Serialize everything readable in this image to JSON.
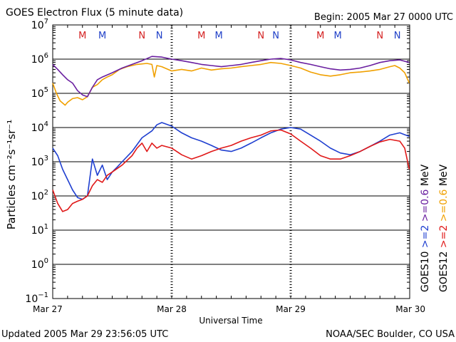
{
  "chart_data": {
    "type": "line",
    "title": "GOES Electron Flux (5 minute data)",
    "begin": "Begin: 2005 Mar 27 0000 UTC",
    "xlabel": "Universal Time",
    "ylabel": "Particles cm⁻²s⁻¹sr⁻¹",
    "x_ticks": [
      "Mar 27",
      "Mar 28",
      "Mar 29",
      "Mar 30"
    ],
    "xlim": [
      "2005-03-27 00:00",
      "2005-03-30 00:00"
    ],
    "y_scale": "log",
    "ylim": [
      0.1,
      10000000
    ],
    "y_ticks": [
      {
        "base": "10",
        "exp": "7"
      },
      {
        "base": "10",
        "exp": "6"
      },
      {
        "base": "10",
        "exp": "5"
      },
      {
        "base": "10",
        "exp": "4"
      },
      {
        "base": "10",
        "exp": "3"
      },
      {
        "base": "10",
        "exp": "2"
      },
      {
        "base": "10",
        "exp": "1"
      },
      {
        "base": "10",
        "exp": "0"
      },
      {
        "base": "10",
        "exp": "−1"
      }
    ],
    "threshold_level": 1000,
    "markers": [
      {
        "label": "M",
        "time": "2005-03-27 06:00",
        "color": "#d42020"
      },
      {
        "label": "M",
        "time": "2005-03-27 10:00",
        "color": "#2040c8"
      },
      {
        "label": "N",
        "time": "2005-03-27 18:00",
        "color": "#d42020"
      },
      {
        "label": "N",
        "time": "2005-03-27 21:30",
        "color": "#2040c8"
      },
      {
        "label": "M",
        "time": "2005-03-28 06:00",
        "color": "#d42020"
      },
      {
        "label": "M",
        "time": "2005-03-28 09:30",
        "color": "#2040c8"
      },
      {
        "label": "N",
        "time": "2005-03-28 18:00",
        "color": "#d42020"
      },
      {
        "label": "N",
        "time": "2005-03-28 21:00",
        "color": "#2040c8"
      },
      {
        "label": "M",
        "time": "2005-03-29 06:00",
        "color": "#d42020"
      },
      {
        "label": "M",
        "time": "2005-03-29 09:30",
        "color": "#2040c8"
      },
      {
        "label": "N",
        "time": "2005-03-29 18:00",
        "color": "#d42020"
      },
      {
        "label": "N",
        "time": "2005-03-29 21:30",
        "color": "#2040c8"
      }
    ],
    "series": [
      {
        "name": "GOES12 >=0.6 MeV",
        "color": "#f0a000",
        "x": [
          "2005-03-27 00:00",
          "2005-03-27 00:45",
          "2005-03-27 01:30",
          "2005-03-27 02:30",
          "2005-03-27 03:00",
          "2005-03-27 04:00",
          "2005-03-27 05:00",
          "2005-03-27 06:00",
          "2005-03-27 07:00",
          "2005-03-27 08:00",
          "2005-03-27 09:00",
          "2005-03-27 10:00",
          "2005-03-27 11:00",
          "2005-03-27 12:00",
          "2005-03-27 13:30",
          "2005-03-27 15:00",
          "2005-03-27 17:00",
          "2005-03-27 19:00",
          "2005-03-27 20:00",
          "2005-03-27 20:30",
          "2005-03-27 21:00",
          "2005-03-27 22:00",
          "2005-03-28 00:00",
          "2005-03-28 02:00",
          "2005-03-28 04:00",
          "2005-03-28 06:00",
          "2005-03-28 08:00",
          "2005-03-28 10:00",
          "2005-03-28 12:00",
          "2005-03-28 14:00",
          "2005-03-28 16:00",
          "2005-03-28 18:00",
          "2005-03-28 20:00",
          "2005-03-28 22:00",
          "2005-03-29 00:00",
          "2005-03-29 02:00",
          "2005-03-29 04:00",
          "2005-03-29 06:00",
          "2005-03-29 08:00",
          "2005-03-29 10:00",
          "2005-03-29 12:00",
          "2005-03-29 14:00",
          "2005-03-29 16:00",
          "2005-03-29 18:00",
          "2005-03-29 20:00",
          "2005-03-29 21:00",
          "2005-03-29 22:00",
          "2005-03-29 23:00",
          "2005-03-29 23:55"
        ],
        "values": [
          200000,
          100000,
          60000,
          45000,
          55000,
          70000,
          75000,
          65000,
          80000,
          150000,
          180000,
          250000,
          300000,
          350000,
          500000,
          600000,
          700000,
          750000,
          700000,
          300000,
          650000,
          600000,
          450000,
          500000,
          450000,
          550000,
          480000,
          520000,
          550000,
          600000,
          650000,
          700000,
          800000,
          750000,
          650000,
          550000,
          420000,
          350000,
          320000,
          350000,
          400000,
          420000,
          450000,
          500000,
          600000,
          650000,
          550000,
          400000,
          200000
        ]
      },
      {
        "name": "GOES10 >=0.6 MeV",
        "color": "#6a1fa0",
        "x": [
          "2005-03-27 00:00",
          "2005-03-27 01:00",
          "2005-03-27 02:00",
          "2005-03-27 03:00",
          "2005-03-27 04:00",
          "2005-03-27 05:00",
          "2005-03-27 06:00",
          "2005-03-27 07:00",
          "2005-03-27 08:00",
          "2005-03-27 09:00",
          "2005-03-27 10:00",
          "2005-03-27 12:00",
          "2005-03-27 14:00",
          "2005-03-27 16:00",
          "2005-03-27 18:00",
          "2005-03-27 20:00",
          "2005-03-27 22:00",
          "2005-03-28 00:00",
          "2005-03-28 02:00",
          "2005-03-28 04:00",
          "2005-03-28 06:00",
          "2005-03-28 08:00",
          "2005-03-28 10:00",
          "2005-03-28 12:00",
          "2005-03-28 14:00",
          "2005-03-28 16:00",
          "2005-03-28 18:00",
          "2005-03-28 20:00",
          "2005-03-28 22:00",
          "2005-03-29 00:00",
          "2005-03-29 02:00",
          "2005-03-29 04:00",
          "2005-03-29 06:00",
          "2005-03-29 08:00",
          "2005-03-29 10:00",
          "2005-03-29 12:00",
          "2005-03-29 14:00",
          "2005-03-29 16:00",
          "2005-03-29 18:00",
          "2005-03-29 20:00",
          "2005-03-29 22:00",
          "2005-03-29 23:55"
        ],
        "values": [
          700000,
          500000,
          350000,
          250000,
          200000,
          120000,
          90000,
          80000,
          150000,
          250000,
          300000,
          400000,
          550000,
          700000,
          900000,
          1200000,
          1150000,
          1000000,
          900000,
          800000,
          700000,
          650000,
          600000,
          650000,
          700000,
          800000,
          900000,
          1000000,
          1050000,
          950000,
          800000,
          700000,
          600000,
          520000,
          480000,
          500000,
          550000,
          650000,
          800000,
          900000,
          950000,
          800000
        ]
      },
      {
        "name": "GOES10 >=2 MeV",
        "color": "#1f3fd0",
        "x": [
          "2005-03-27 00:00",
          "2005-03-27 01:00",
          "2005-03-27 02:00",
          "2005-03-27 03:00",
          "2005-03-27 04:00",
          "2005-03-27 05:00",
          "2005-03-27 06:00",
          "2005-03-27 07:00",
          "2005-03-27 08:00",
          "2005-03-27 09:00",
          "2005-03-27 10:00",
          "2005-03-27 11:00",
          "2005-03-27 12:00",
          "2005-03-27 13:00",
          "2005-03-27 14:00",
          "2005-03-27 16:00",
          "2005-03-27 18:00",
          "2005-03-27 20:00",
          "2005-03-27 21:00",
          "2005-03-27 22:00",
          "2005-03-28 00:00",
          "2005-03-28 02:00",
          "2005-03-28 04:00",
          "2005-03-28 06:00",
          "2005-03-28 08:00",
          "2005-03-28 10:00",
          "2005-03-28 12:00",
          "2005-03-28 14:00",
          "2005-03-28 16:00",
          "2005-03-28 18:00",
          "2005-03-28 20:00",
          "2005-03-28 22:00",
          "2005-03-29 00:00",
          "2005-03-29 02:00",
          "2005-03-29 04:00",
          "2005-03-29 06:00",
          "2005-03-29 08:00",
          "2005-03-29 10:00",
          "2005-03-29 12:00",
          "2005-03-29 14:00",
          "2005-03-29 16:00",
          "2005-03-29 18:00",
          "2005-03-29 20:00",
          "2005-03-29 22:00",
          "2005-03-29 23:55"
        ],
        "values": [
          2500,
          1500,
          600,
          300,
          150,
          90,
          80,
          100,
          1200,
          400,
          800,
          300,
          500,
          700,
          1000,
          2000,
          5000,
          8000,
          12000,
          14000,
          11000,
          7000,
          5000,
          4000,
          3000,
          2200,
          2000,
          2500,
          3500,
          5000,
          7000,
          9000,
          10000,
          9000,
          6000,
          4000,
          2500,
          1800,
          1600,
          2000,
          2800,
          4000,
          6000,
          7000,
          5500
        ]
      },
      {
        "name": "GOES12 >=2 MeV",
        "color": "#e01818",
        "x": [
          "2005-03-27 00:00",
          "2005-03-27 01:00",
          "2005-03-27 02:00",
          "2005-03-27 03:00",
          "2005-03-27 04:00",
          "2005-03-27 05:00",
          "2005-03-27 06:00",
          "2005-03-27 07:00",
          "2005-03-27 08:00",
          "2005-03-27 09:00",
          "2005-03-27 10:00",
          "2005-03-27 11:00",
          "2005-03-27 12:00",
          "2005-03-27 14:00",
          "2005-03-27 16:00",
          "2005-03-27 17:00",
          "2005-03-27 18:00",
          "2005-03-27 19:00",
          "2005-03-27 20:00",
          "2005-03-27 21:00",
          "2005-03-27 22:00",
          "2005-03-28 00:00",
          "2005-03-28 02:00",
          "2005-03-28 04:00",
          "2005-03-28 06:00",
          "2005-03-28 08:00",
          "2005-03-28 10:00",
          "2005-03-28 12:00",
          "2005-03-28 14:00",
          "2005-03-28 16:00",
          "2005-03-28 18:00",
          "2005-03-28 20:00",
          "2005-03-28 22:00",
          "2005-03-29 00:00",
          "2005-03-29 02:00",
          "2005-03-29 04:00",
          "2005-03-29 06:00",
          "2005-03-29 08:00",
          "2005-03-29 10:00",
          "2005-03-29 12:00",
          "2005-03-29 14:00",
          "2005-03-29 16:00",
          "2005-03-29 18:00",
          "2005-03-29 20:00",
          "2005-03-29 22:00",
          "2005-03-29 23:00",
          "2005-03-29 23:55"
        ],
        "values": [
          150,
          60,
          35,
          40,
          60,
          70,
          80,
          100,
          200,
          300,
          250,
          400,
          500,
          800,
          1500,
          2500,
          3500,
          2000,
          3500,
          2500,
          3000,
          2500,
          1600,
          1200,
          1500,
          2000,
          2500,
          3000,
          4000,
          5000,
          6000,
          8000,
          8500,
          6500,
          4000,
          2500,
          1500,
          1200,
          1200,
          1500,
          2000,
          2800,
          3800,
          4500,
          4000,
          2500,
          600
        ]
      }
    ],
    "legend": [
      {
        "label": "GOES10",
        "color": "#000000"
      },
      {
        "label": ">=2",
        "color": "#1f3fd0"
      },
      {
        "label": ">=0.6",
        "color": "#6a1fa0"
      },
      {
        "label": "MeV",
        "color": "#000000"
      },
      {
        "label": "GOES12",
        "color": "#000000"
      },
      {
        "label": ">=2",
        "color": "#e01818"
      },
      {
        "label": ">=0.6",
        "color": "#f0a000"
      },
      {
        "label": "MeV",
        "color": "#000000"
      }
    ],
    "legend_placement": "right, vertical"
  },
  "footer": {
    "updated": "Updated 2005 Mar 29 23:56:05 UTC",
    "credit": "NOAA/SEC Boulder, CO USA"
  }
}
